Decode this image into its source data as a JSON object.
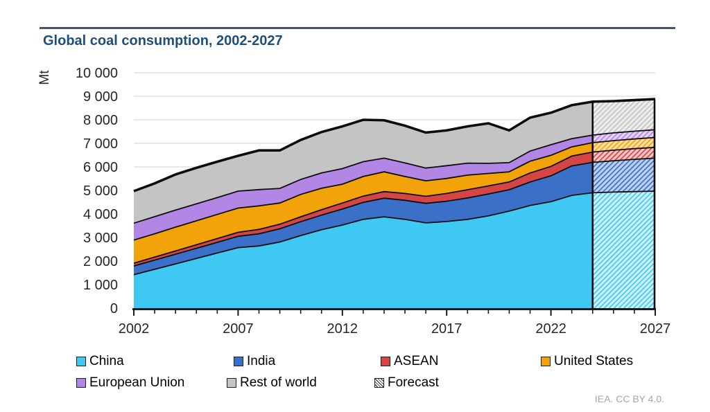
{
  "page": {
    "title": "Global coal consumption, 2002-2027",
    "attribution": "IEA. CC BY 4.0."
  },
  "colors": {
    "title_text": "#1F4E79",
    "top_rule": "#44546A",
    "grid": "#D9D9D9",
    "axis": "#1A1A1A",
    "band_outline": "#0D0D0D",
    "tick_text": "#262626",
    "attribution_text": "#A6A6A6"
  },
  "chart_data": {
    "type": "area",
    "stacked": true,
    "title": "Global coal consumption, 2002-2027",
    "ylabel": "Mt",
    "xlabel": "",
    "ylim": [
      0,
      10000
    ],
    "y_tick_step": 1000,
    "y_tick_labels": [
      "0",
      "1 000",
      "2 000",
      "3 000",
      "4 000",
      "5 000",
      "6 000",
      "7 000",
      "8 000",
      "9 000",
      "10 000"
    ],
    "x": [
      2002,
      2003,
      2004,
      2005,
      2006,
      2007,
      2008,
      2009,
      2010,
      2011,
      2012,
      2013,
      2014,
      2015,
      2016,
      2017,
      2018,
      2019,
      2020,
      2021,
      2022,
      2023,
      2024,
      2025,
      2026,
      2027
    ],
    "x_tick_labels": [
      "2002",
      "2007",
      "2012",
      "2017",
      "2022",
      "2027"
    ],
    "x_major_ticks": [
      2002,
      2007,
      2012,
      2017,
      2022,
      2027
    ],
    "grid": "horizontal-only",
    "legend_position": "bottom",
    "forecast_start": 2024,
    "series": [
      {
        "name": "China",
        "color": "#3FC9F2",
        "hatch_bg": "#CFF0FB",
        "values": [
          1420,
          1650,
          1880,
          2110,
          2340,
          2570,
          2640,
          2810,
          3080,
          3330,
          3530,
          3770,
          3880,
          3770,
          3620,
          3680,
          3770,
          3920,
          4120,
          4360,
          4520,
          4790,
          4900,
          4930,
          4950,
          4970
        ]
      },
      {
        "name": "India",
        "color": "#3A70C8",
        "hatch_bg": "#BFD0EC",
        "values": [
          370,
          390,
          410,
          430,
          455,
          480,
          520,
          560,
          590,
          620,
          680,
          720,
          790,
          810,
          830,
          860,
          910,
          930,
          910,
          1000,
          1100,
          1250,
          1290,
          1330,
          1370,
          1400
        ]
      },
      {
        "name": "ASEAN",
        "color": "#D64545",
        "hatch_bg": "#F5C6C6",
        "values": [
          120,
          130,
          140,
          150,
          160,
          170,
          185,
          195,
          210,
          230,
          255,
          270,
          280,
          290,
          300,
          330,
          350,
          340,
          330,
          380,
          400,
          420,
          440,
          450,
          455,
          460
        ]
      },
      {
        "name": "United States",
        "color": "#F2A30A",
        "hatch_bg": "#FBDFA8",
        "values": [
          980,
          990,
          1010,
          1020,
          1025,
          1030,
          1000,
          900,
          950,
          910,
          800,
          830,
          840,
          720,
          660,
          640,
          620,
          530,
          430,
          500,
          470,
          390,
          400,
          405,
          410,
          420
        ]
      },
      {
        "name": "European Union",
        "color": "#B186E4",
        "hatch_bg": "#E4D4F7",
        "values": [
          720,
          725,
          725,
          720,
          715,
          720,
          690,
          620,
          635,
          650,
          660,
          630,
          580,
          580,
          540,
          540,
          510,
          430,
          390,
          430,
          450,
          350,
          320,
          330,
          330,
          330
        ]
      },
      {
        "name": "Rest of world",
        "color": "#C4C4C4",
        "hatch_bg": "#EDEDED",
        "values": [
          1360,
          1415,
          1515,
          1530,
          1525,
          1500,
          1665,
          1615,
          1675,
          1740,
          1795,
          1780,
          1610,
          1580,
          1510,
          1500,
          1560,
          1700,
          1370,
          1420,
          1360,
          1420,
          1420,
          1350,
          1320,
          1300
        ]
      }
    ]
  },
  "legend": {
    "items": [
      {
        "label": "China"
      },
      {
        "label": "India"
      },
      {
        "label": "ASEAN"
      },
      {
        "label": "United States"
      },
      {
        "label": "European Union"
      },
      {
        "label": "Rest of world"
      },
      {
        "label": "Forecast"
      }
    ]
  }
}
